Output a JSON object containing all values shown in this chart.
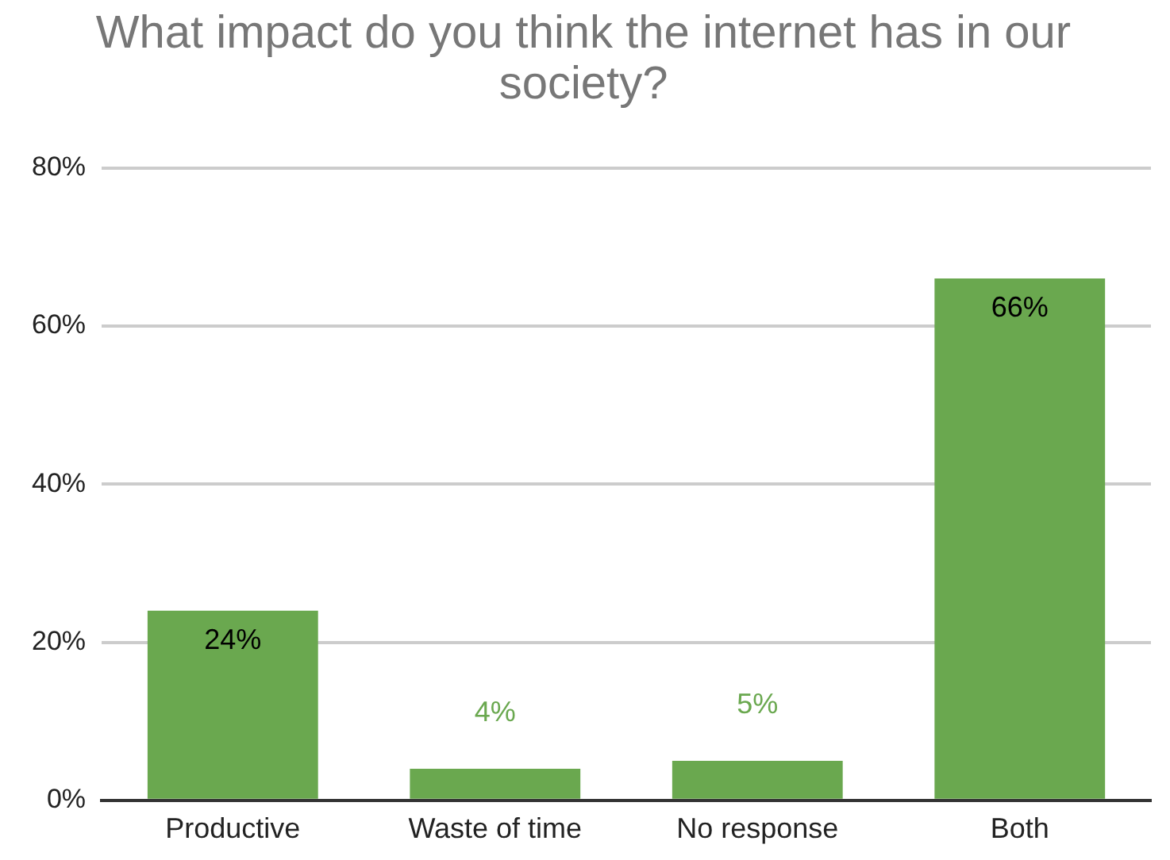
{
  "chart_data": {
    "type": "bar",
    "title": "What impact do you think the internet has in our society?",
    "categories": [
      "Productive",
      "Waste of time",
      "No response",
      "Both"
    ],
    "values": [
      24,
      4,
      5,
      66
    ],
    "color": "#6aa84f",
    "ylim": [
      0,
      80
    ],
    "yticks": [
      {
        "value": 0,
        "label": "0%"
      },
      {
        "value": 20,
        "label": "20%"
      },
      {
        "value": 40,
        "label": "40%"
      },
      {
        "value": 60,
        "label": "60%"
      },
      {
        "value": 80,
        "label": "80%"
      }
    ],
    "value_labels": [
      "24%",
      "4%",
      "5%",
      "66%"
    ],
    "grid": "y",
    "legend": false
  }
}
